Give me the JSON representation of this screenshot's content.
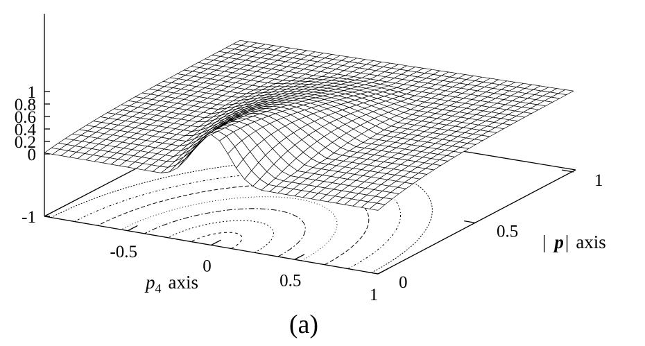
{
  "chart_data": {
    "type": "surface3d",
    "caption": "(a)",
    "x_axis": {
      "label_var": "p",
      "label_sub": "4",
      "label_word": "axis",
      "range": [
        -1,
        1
      ],
      "ticks": [
        "-0.5",
        "0",
        "0.5",
        "1"
      ]
    },
    "y_axis": {
      "label_open": "|",
      "label_var": "p",
      "label_close": "|",
      "label_word": "axis",
      "range": [
        0,
        1
      ],
      "ticks": [
        "0",
        "0.5",
        "1"
      ]
    },
    "z_axis": {
      "range": [
        -1,
        1
      ],
      "ticks": [
        "1",
        "0.8",
        "0.6",
        "0.4",
        "0.2",
        "0",
        "-1"
      ]
    },
    "surface": {
      "function": "peaked ridge along p4, maximum at p4 = 0, |p| = 0",
      "peak_value": 0.77,
      "edge_value_at_p4_minus1": 0.02,
      "far_plateau_value": 0.32
    },
    "contours": {
      "count": 7,
      "center": [
        0,
        0
      ],
      "location": "base plane z = -1"
    },
    "grid": false
  }
}
